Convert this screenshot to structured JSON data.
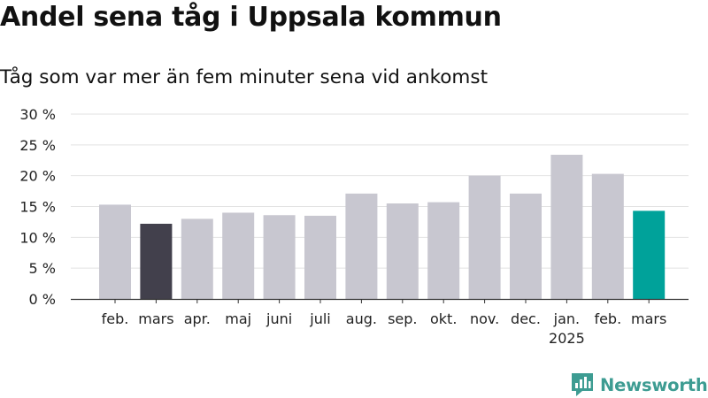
{
  "header": {
    "title": "Andel sena tåg i Uppsala kommun",
    "subtitle": "Tåg som var mer än fem minuter sena vid ankomst"
  },
  "brand": {
    "name": "Newsworthy",
    "icon": "newsworthy-logo-icon",
    "color": "#3d9c92"
  },
  "chart_data": {
    "type": "bar",
    "categories": [
      "feb.",
      "mars",
      "apr.",
      "maj",
      "juni",
      "juli",
      "aug.",
      "sep.",
      "okt.",
      "nov.",
      "dec.",
      "jan.",
      "feb.",
      "mars"
    ],
    "category_sublabels": [
      "",
      "",
      "",
      "",
      "",
      "",
      "",
      "",
      "",
      "",
      "",
      "2025",
      "",
      ""
    ],
    "values": [
      15.3,
      12.2,
      13.0,
      14.0,
      13.6,
      13.5,
      17.1,
      15.5,
      15.7,
      20.0,
      17.1,
      23.4,
      20.3,
      14.3
    ],
    "bar_colors": [
      "#c8c7d0",
      "#42404c",
      "#c8c7d0",
      "#c8c7d0",
      "#c8c7d0",
      "#c8c7d0",
      "#c8c7d0",
      "#c8c7d0",
      "#c8c7d0",
      "#c8c7d0",
      "#c8c7d0",
      "#c8c7d0",
      "#c8c7d0",
      "#00a29a"
    ],
    "ylim": [
      0,
      30
    ],
    "yticks": [
      0,
      5,
      10,
      15,
      20,
      25,
      30
    ],
    "ytick_labels": [
      "0 %",
      "5 %",
      "10 %",
      "15 %",
      "20 %",
      "25 %",
      "30 %"
    ],
    "grid": true,
    "xlabel": "",
    "ylabel": ""
  }
}
